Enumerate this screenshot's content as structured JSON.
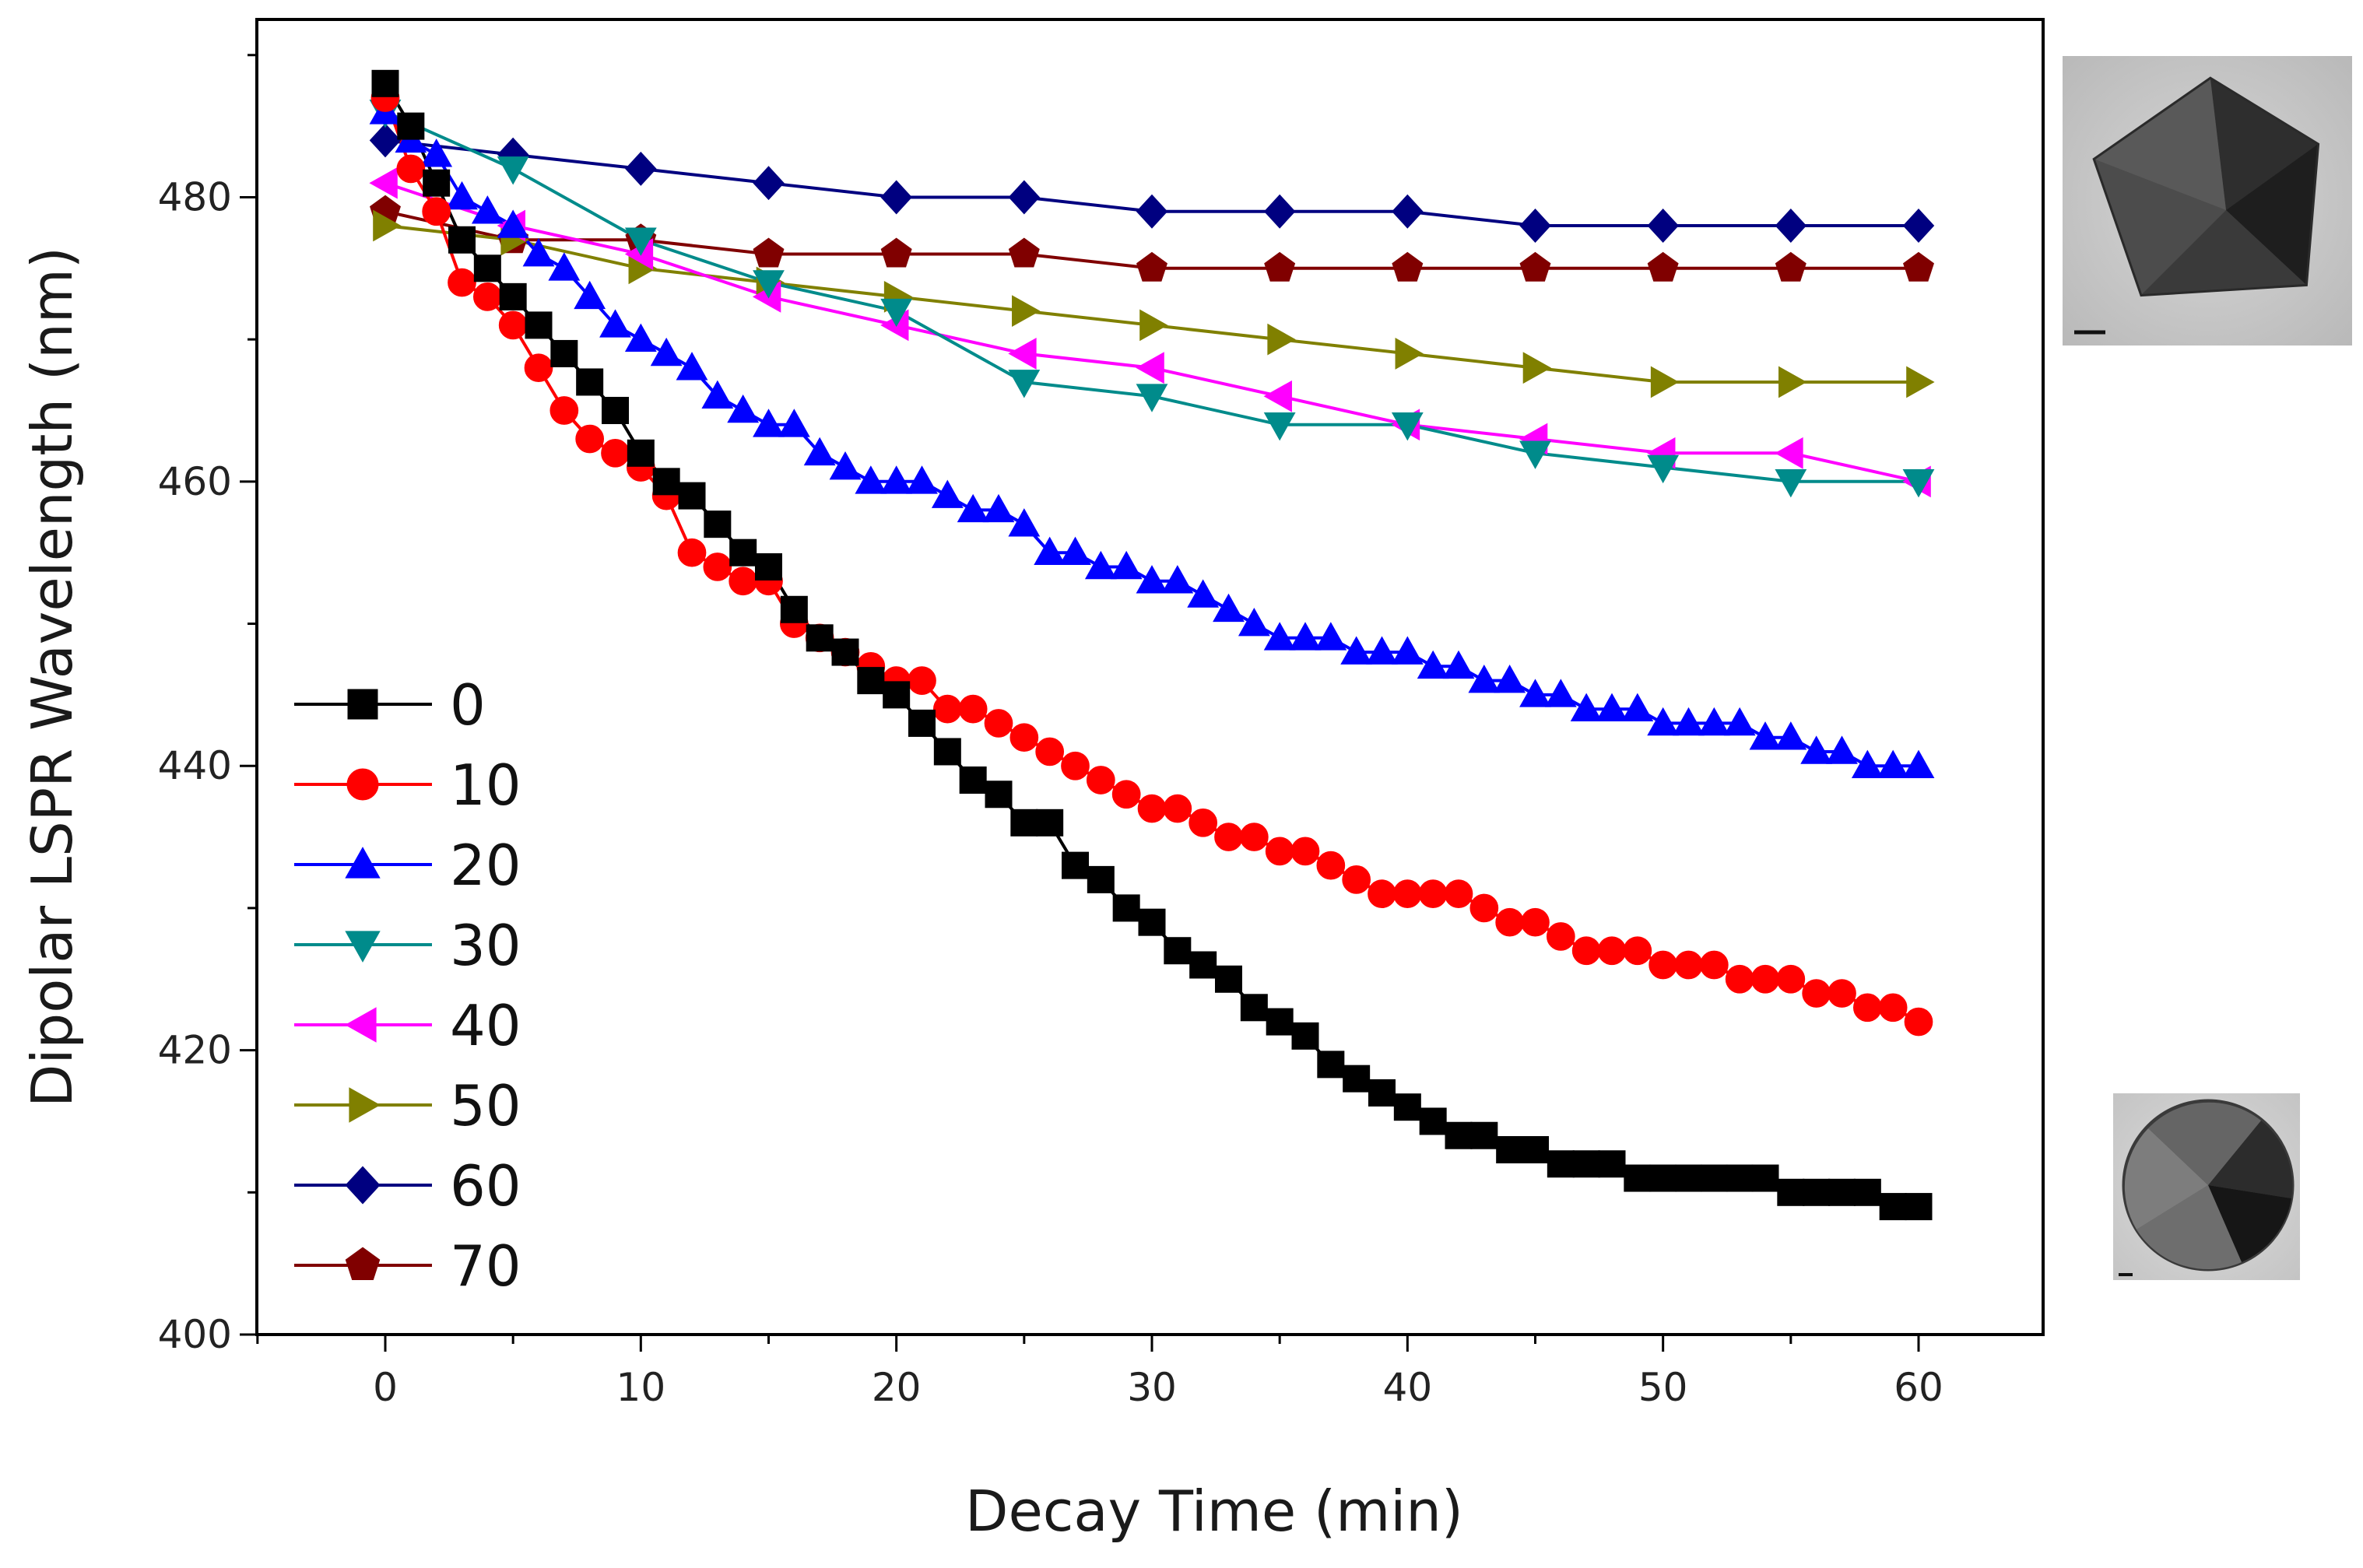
{
  "chart_data": {
    "type": "line",
    "title": "",
    "xlabel": "Decay Time (min)",
    "ylabel": "Dipolar LSPR Wavelength (nm)",
    "xlim": [
      -5,
      65
    ],
    "ylim": [
      400,
      492
    ],
    "xticks": [
      0,
      10,
      20,
      30,
      40,
      50,
      60
    ],
    "yticks": [
      400,
      420,
      440,
      460,
      480
    ],
    "grid": false,
    "legend_position": "lower-left",
    "series": [
      {
        "name": "0",
        "color": "#000000",
        "marker": "square",
        "x": [
          0,
          1,
          2,
          3,
          4,
          5,
          6,
          7,
          8,
          9,
          10,
          11,
          12,
          13,
          14,
          15,
          16,
          17,
          18,
          19,
          20,
          21,
          22,
          23,
          24,
          25,
          26,
          27,
          28,
          29,
          30,
          31,
          32,
          33,
          34,
          35,
          36,
          37,
          38,
          39,
          40,
          41,
          42,
          43,
          44,
          45,
          46,
          47,
          48,
          49,
          50,
          51,
          52,
          53,
          54,
          55,
          56,
          57,
          58,
          59,
          60
        ],
        "y": [
          488,
          485,
          481,
          477,
          475,
          473,
          471,
          469,
          467,
          465,
          462,
          460,
          459,
          457,
          455,
          454,
          451,
          449,
          448,
          446,
          445,
          443,
          441,
          439,
          438,
          436,
          436,
          433,
          432,
          430,
          429,
          427,
          426,
          425,
          423,
          422,
          421,
          419,
          418,
          417,
          416,
          415,
          414,
          414,
          413,
          413,
          412,
          412,
          412,
          411,
          411,
          411,
          411,
          411,
          411,
          410,
          410,
          410,
          410,
          409,
          409
        ]
      },
      {
        "name": "10",
        "color": "#ff0000",
        "marker": "circle",
        "x": [
          0,
          1,
          2,
          3,
          4,
          5,
          6,
          7,
          8,
          9,
          10,
          11,
          12,
          13,
          14,
          15,
          16,
          17,
          18,
          19,
          20,
          21,
          22,
          23,
          24,
          25,
          26,
          27,
          28,
          29,
          30,
          31,
          32,
          33,
          34,
          35,
          36,
          37,
          38,
          39,
          40,
          41,
          42,
          43,
          44,
          45,
          46,
          47,
          48,
          49,
          50,
          51,
          52,
          53,
          54,
          55,
          56,
          57,
          58,
          59,
          60
        ],
        "y": [
          487,
          482,
          479,
          474,
          473,
          471,
          468,
          465,
          463,
          462,
          461,
          459,
          455,
          454,
          453,
          453,
          450,
          449,
          448,
          447,
          446,
          446,
          444,
          444,
          443,
          442,
          441,
          440,
          439,
          438,
          437,
          437,
          436,
          435,
          435,
          434,
          434,
          433,
          432,
          431,
          431,
          431,
          431,
          430,
          429,
          429,
          428,
          427,
          427,
          427,
          426,
          426,
          426,
          425,
          425,
          425,
          424,
          424,
          423,
          423,
          422
        ]
      },
      {
        "name": "20",
        "color": "#0000ff",
        "marker": "triangle-up",
        "x": [
          0,
          1,
          2,
          3,
          4,
          5,
          6,
          7,
          8,
          9,
          10,
          11,
          12,
          13,
          14,
          15,
          16,
          17,
          18,
          19,
          20,
          21,
          22,
          23,
          24,
          25,
          26,
          27,
          28,
          29,
          30,
          31,
          32,
          33,
          34,
          35,
          36,
          37,
          38,
          39,
          40,
          41,
          42,
          43,
          44,
          45,
          46,
          47,
          48,
          49,
          50,
          51,
          52,
          53,
          54,
          55,
          56,
          57,
          58,
          59,
          60
        ],
        "y": [
          486,
          484,
          483,
          480,
          479,
          478,
          476,
          475,
          473,
          471,
          470,
          469,
          468,
          466,
          465,
          464,
          464,
          462,
          461,
          460,
          460,
          460,
          459,
          458,
          458,
          457,
          455,
          455,
          454,
          454,
          453,
          453,
          452,
          451,
          450,
          449,
          449,
          449,
          448,
          448,
          448,
          447,
          447,
          446,
          446,
          445,
          445,
          444,
          444,
          444,
          443,
          443,
          443,
          443,
          442,
          442,
          441,
          441,
          440,
          440,
          440
        ]
      },
      {
        "name": "30",
        "color": "#008b8b",
        "marker": "triangle-down",
        "x": [
          0,
          5,
          10,
          15,
          20,
          25,
          30,
          35,
          40,
          45,
          50,
          55,
          60
        ],
        "y": [
          486,
          482,
          477,
          474,
          472,
          467,
          466,
          464,
          464,
          462,
          461,
          460,
          460
        ]
      },
      {
        "name": "40",
        "color": "#ff00ff",
        "marker": "triangle-left",
        "x": [
          0,
          5,
          10,
          15,
          20,
          25,
          30,
          35,
          40,
          45,
          50,
          55,
          60
        ],
        "y": [
          481,
          478,
          476,
          473,
          471,
          469,
          468,
          466,
          464,
          463,
          462,
          462,
          460
        ]
      },
      {
        "name": "50",
        "color": "#808000",
        "marker": "triangle-right",
        "x": [
          0,
          5,
          10,
          15,
          20,
          25,
          30,
          35,
          40,
          45,
          50,
          55,
          60
        ],
        "y": [
          478,
          477,
          475,
          474,
          473,
          472,
          471,
          470,
          469,
          468,
          467,
          467,
          467
        ]
      },
      {
        "name": "60",
        "color": "#000080",
        "marker": "diamond",
        "x": [
          0,
          5,
          10,
          15,
          20,
          25,
          30,
          35,
          40,
          45,
          50,
          55,
          60
        ],
        "y": [
          484,
          483,
          482,
          481,
          480,
          480,
          479,
          479,
          479,
          478,
          478,
          478,
          478
        ]
      },
      {
        "name": "70",
        "color": "#800000",
        "marker": "pentagon",
        "x": [
          0,
          5,
          10,
          15,
          20,
          25,
          30,
          35,
          40,
          45,
          50,
          55,
          60
        ],
        "y": [
          479,
          477,
          477,
          476,
          476,
          476,
          475,
          475,
          475,
          475,
          475,
          475,
          475
        ]
      }
    ]
  },
  "insets": {
    "top": {
      "description_icon": "pentagon-nanoparticle-tem-image"
    },
    "bottom": {
      "description_icon": "spherical-nanoparticle-tem-image"
    }
  }
}
